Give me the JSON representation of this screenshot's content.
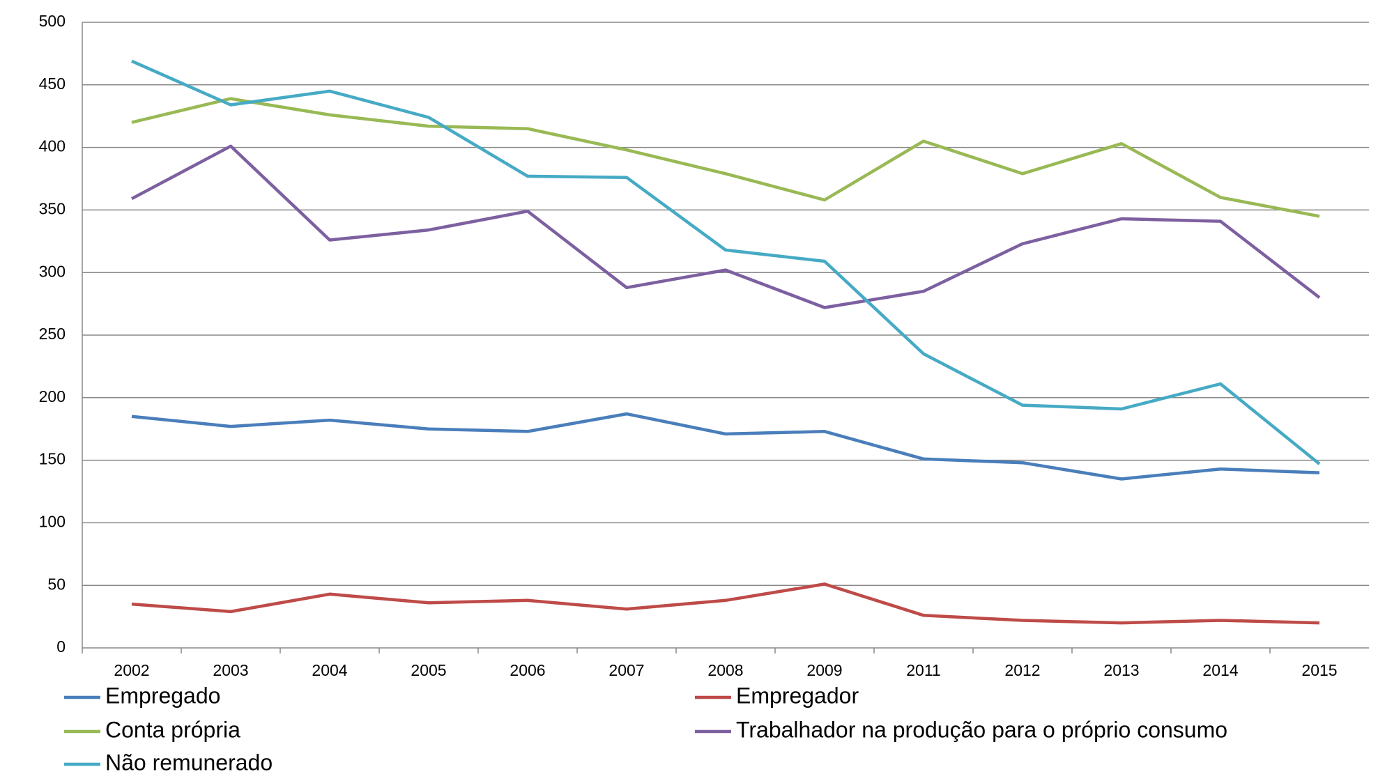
{
  "chart_data": {
    "type": "line",
    "categories": [
      "2002",
      "2003",
      "2004",
      "2005",
      "2006",
      "2007",
      "2008",
      "2009",
      "2011",
      "2012",
      "2013",
      "2014",
      "2015"
    ],
    "series": [
      {
        "name": "Empregado",
        "color": "#4a7ebb",
        "values": [
          185,
          177,
          182,
          175,
          173,
          187,
          171,
          173,
          151,
          148,
          135,
          143,
          140
        ]
      },
      {
        "name": "Empregador",
        "color": "#be4b48",
        "values": [
          35,
          29,
          43,
          36,
          38,
          31,
          38,
          51,
          26,
          22,
          20,
          22,
          20
        ]
      },
      {
        "name": "Conta própria",
        "color": "#98b954",
        "values": [
          420,
          439,
          426,
          417,
          415,
          398,
          379,
          358,
          405,
          379,
          403,
          360,
          345
        ]
      },
      {
        "name": "Trabalhador na produção para o próprio consumo",
        "color": "#7d60a0",
        "values": [
          359,
          401,
          326,
          334,
          349,
          288,
          302,
          272,
          285,
          323,
          343,
          341,
          280
        ]
      },
      {
        "name": "Não remunerado",
        "color": "#46aac5",
        "values": [
          469,
          434,
          445,
          424,
          377,
          376,
          318,
          309,
          235,
          194,
          191,
          211,
          147
        ]
      }
    ],
    "ylim": [
      0,
      500
    ],
    "yticks": [
      0,
      50,
      100,
      150,
      200,
      250,
      300,
      350,
      400,
      450,
      500
    ],
    "grid": true
  }
}
